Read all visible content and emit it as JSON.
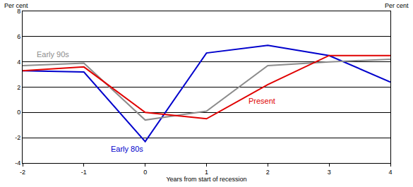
{
  "chart_data": {
    "type": "line",
    "xlabel": "Years from start of recession",
    "ylabel": "Per cent",
    "y2label": "Per cent",
    "x": [
      -2,
      -1,
      0,
      1,
      2,
      3,
      4
    ],
    "series": [
      {
        "name": "Early 80s",
        "color": "#0000cc",
        "values": [
          3.3,
          3.2,
          -2.3,
          4.7,
          5.3,
          4.5,
          2.4
        ]
      },
      {
        "name": "Early 90s",
        "color": "#8c8c8c",
        "values": [
          3.7,
          3.9,
          -0.6,
          0.1,
          3.7,
          4.0,
          4.2
        ]
      },
      {
        "name": "Present",
        "color": "#e00000",
        "values": [
          3.3,
          3.6,
          0.0,
          -0.5,
          2.2,
          4.5,
          4.5
        ]
      }
    ],
    "annotations": [
      {
        "text": "Early 90s",
        "x": -1.5,
        "y": 4.6
      },
      {
        "text": "Present",
        "x": 1.9,
        "y": 0.9
      },
      {
        "text": "Early 80s",
        "x": -0.3,
        "y": -2.9
      }
    ],
    "xlim": [
      -2,
      4
    ],
    "xticks": [
      -2,
      -1,
      0,
      1,
      2,
      3,
      4
    ],
    "ylim": [
      -4,
      8
    ],
    "yticks": [
      -4,
      -2,
      0,
      2,
      4,
      6,
      8
    ],
    "y2lim": [
      -4,
      8
    ],
    "y2ticks": [
      -4,
      -2,
      0,
      2,
      4,
      6,
      8
    ],
    "grid": true
  }
}
